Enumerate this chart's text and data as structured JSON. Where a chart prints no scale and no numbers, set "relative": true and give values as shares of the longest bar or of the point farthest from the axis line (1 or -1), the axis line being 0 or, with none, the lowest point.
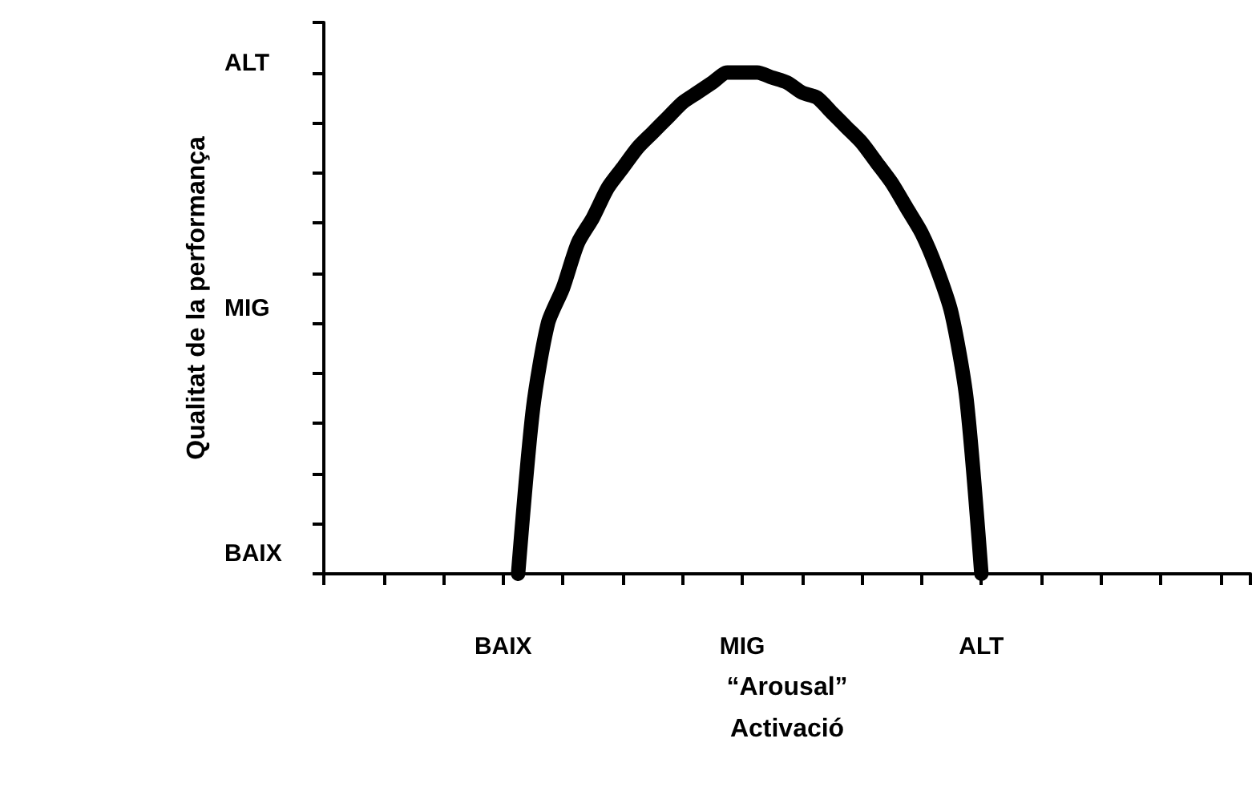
{
  "chart_data": {
    "type": "line",
    "relative": true,
    "xlabel": "“Arousal”\nActivació",
    "ylabel": "Qualitat de la performança",
    "categories": [
      null,
      null,
      null,
      null,
      null,
      null,
      null,
      null,
      null,
      null,
      null,
      null,
      "BAIX",
      null,
      null,
      null,
      null,
      null,
      null,
      null,
      null,
      null,
      null,
      null,
      null,
      null,
      null,
      null,
      "MIG",
      null,
      null,
      null,
      null,
      null,
      null,
      null,
      null,
      null,
      null,
      null,
      null,
      null,
      null,
      null,
      "ALT",
      null,
      null,
      null,
      null,
      null,
      null,
      null,
      null,
      null,
      null,
      null,
      null,
      null,
      null,
      null,
      null,
      null,
      null
    ],
    "series": [
      {
        "color": "#000000",
        "values": [
          null,
          null,
          null,
          null,
          null,
          null,
          null,
          null,
          null,
          null,
          null,
          null,
          null,
          0,
          0.33,
          0.5,
          0.57,
          0.66,
          0.71,
          0.77,
          0.81,
          0.85,
          0.88,
          0.91,
          0.94,
          0.96,
          0.98,
          1.0,
          1.0,
          1.0,
          0.99,
          0.98,
          0.96,
          0.95,
          0.92,
          0.89,
          0.86,
          0.82,
          0.78,
          0.73,
          0.68,
          0.61,
          0.52,
          0.35,
          0,
          null,
          null,
          null,
          null,
          null,
          null,
          null,
          null,
          null,
          null,
          null,
          null,
          null,
          null,
          null,
          null,
          null,
          null
        ]
      }
    ],
    "annotations": [
      "ALT",
      "MIG",
      "BAIX"
    ],
    "grid": false,
    "line_style": "solid"
  }
}
